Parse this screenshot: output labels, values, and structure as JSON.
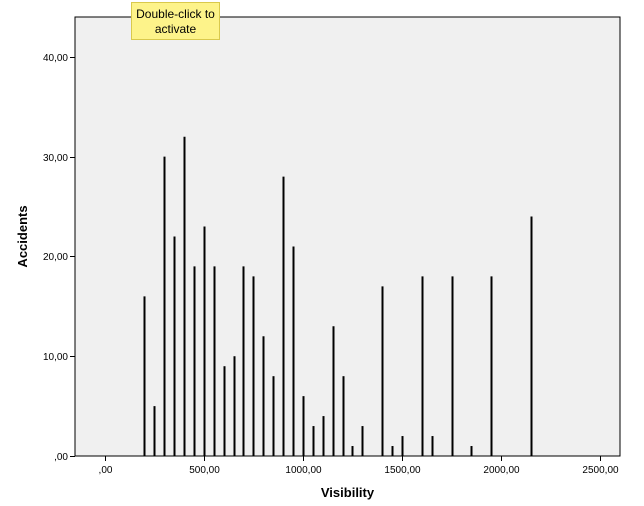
{
  "tooltip": {
    "line1": "Double-click to",
    "line2": "activate"
  },
  "colors": {
    "plot_background": "#f0f0f0",
    "bar": "#000000",
    "tooltip_background": "#fdf38a"
  },
  "chart_data": {
    "type": "bar",
    "title": "",
    "xlabel": "Visibility",
    "ylabel": "Accidents",
    "xlim": [
      -150,
      2600
    ],
    "ylim": [
      0,
      44
    ],
    "x_ticks": [
      {
        "value": 0,
        "label": ",00"
      },
      {
        "value": 500,
        "label": "500,00"
      },
      {
        "value": 1000,
        "label": "1000,00"
      },
      {
        "value": 1500,
        "label": "1500,00"
      },
      {
        "value": 2000,
        "label": "2000,00"
      },
      {
        "value": 2500,
        "label": "2500,00"
      }
    ],
    "y_ticks": [
      {
        "value": 0,
        "label": ",00"
      },
      {
        "value": 10,
        "label": "10,00"
      },
      {
        "value": 20,
        "label": "20,00"
      },
      {
        "value": 30,
        "label": "30,00"
      },
      {
        "value": 40,
        "label": "40,00"
      }
    ],
    "grid": false,
    "x": [
      200,
      250,
      300,
      350,
      400,
      450,
      500,
      550,
      600,
      650,
      700,
      750,
      800,
      850,
      900,
      950,
      1000,
      1050,
      1100,
      1150,
      1200,
      1250,
      1300,
      1400,
      1450,
      1500,
      1600,
      1650,
      1750,
      1850,
      1950,
      2150
    ],
    "values": [
      16,
      5,
      30,
      22,
      32,
      19,
      23,
      19,
      9,
      10,
      19,
      18,
      12,
      8,
      28,
      21,
      6,
      3,
      4,
      13,
      8,
      1,
      3,
      17,
      1,
      2,
      18,
      2,
      18,
      1,
      18,
      24
    ]
  }
}
